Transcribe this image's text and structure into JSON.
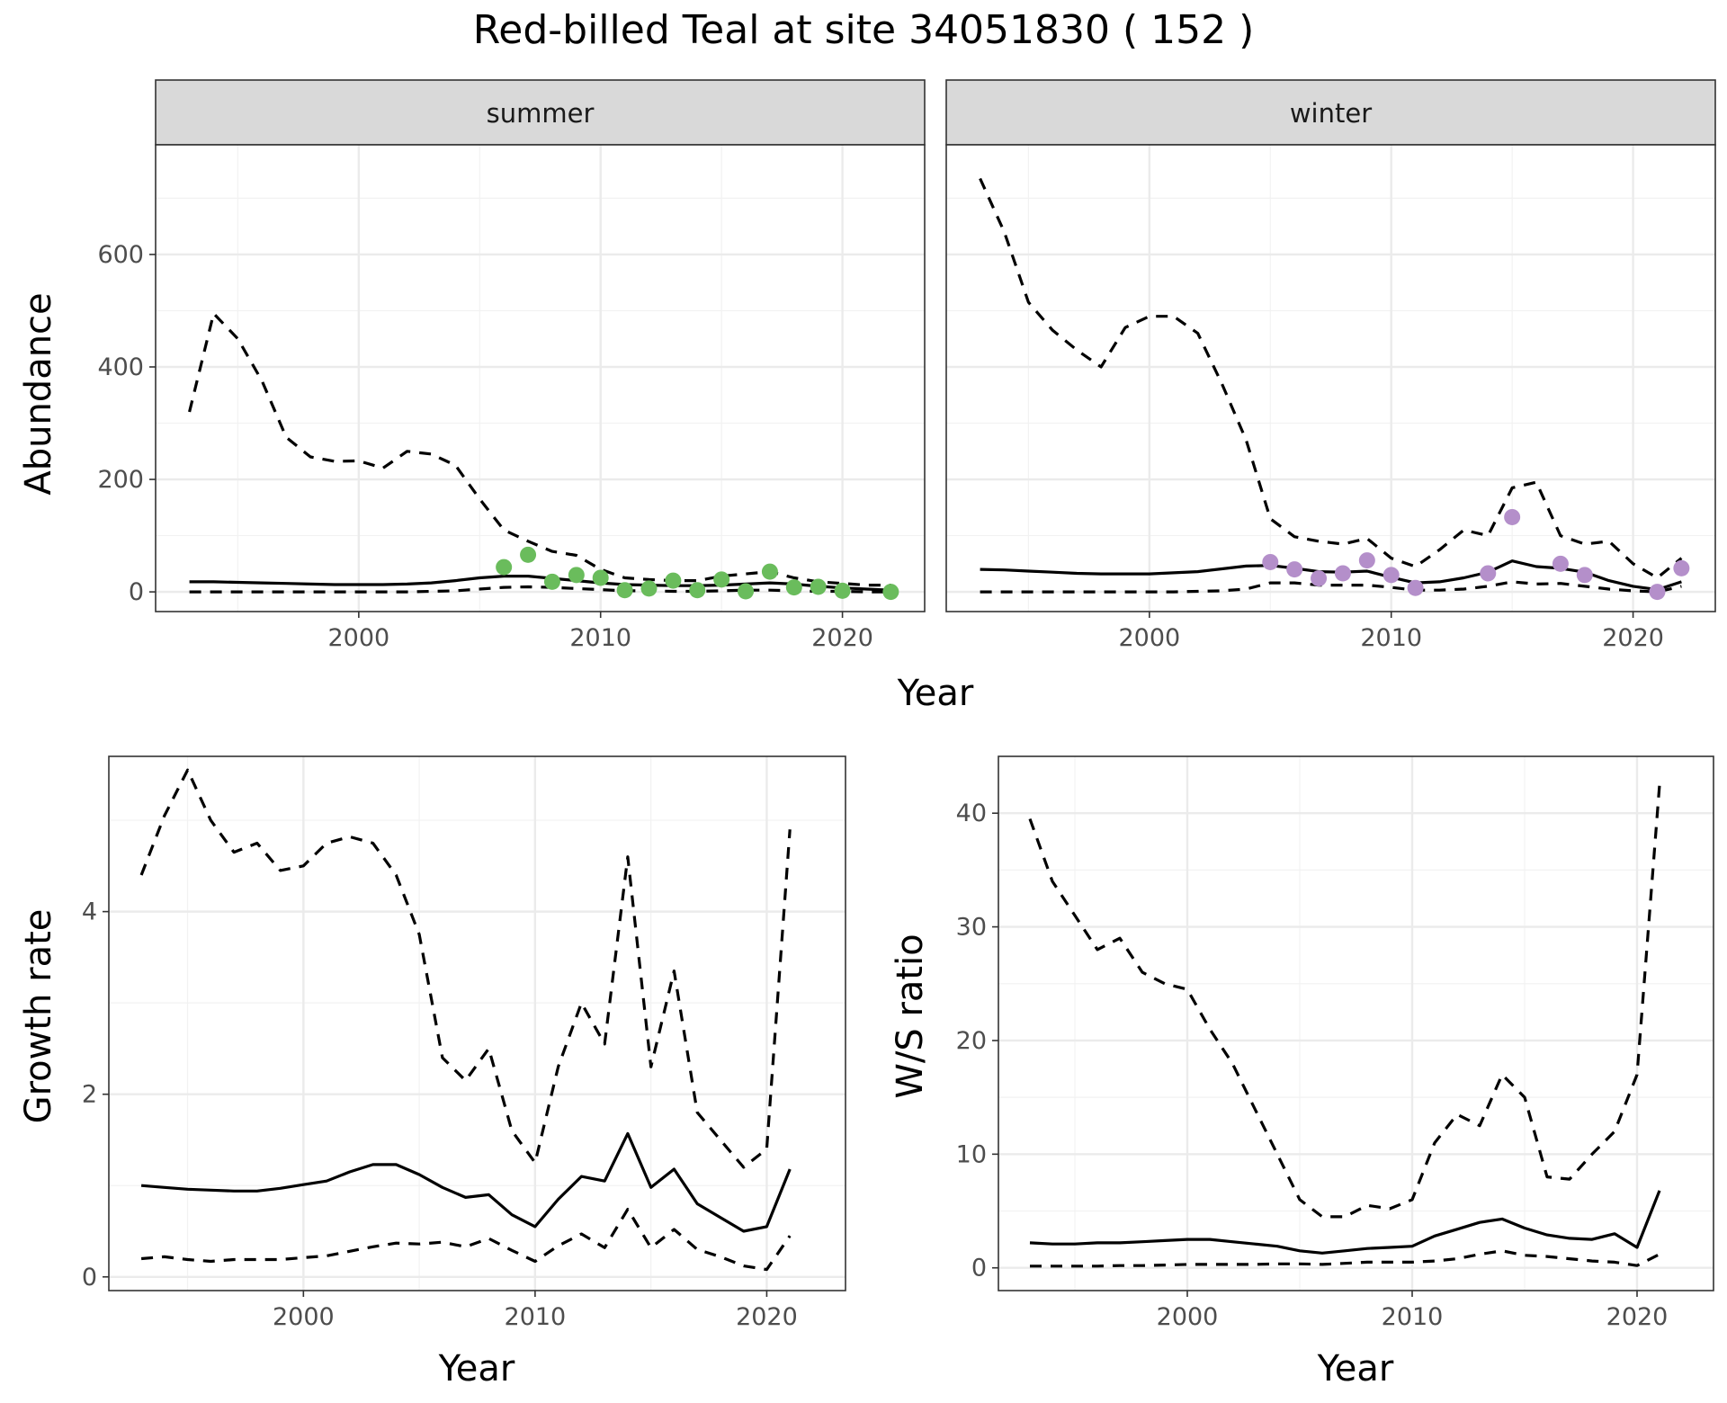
{
  "title": "Red-billed Teal at site 34051830 ( 152 )",
  "chart_data": [
    {
      "type": "line",
      "panel": "summer",
      "ylabel": "Abundance",
      "xlabel": "Year",
      "xlim": [
        1991.6,
        2023.4
      ],
      "ylim": [
        -35,
        795
      ],
      "xticks": [
        2000,
        2010,
        2020
      ],
      "yticks": [
        0,
        200,
        400,
        600
      ],
      "grid": true,
      "series": [
        {
          "x": [
            1993,
            1994,
            1995,
            1996,
            1997,
            1998,
            1999,
            2000,
            2001,
            2002,
            2003,
            2004,
            2005,
            2006,
            2007,
            2008,
            2009,
            2010,
            2011,
            2012,
            2013,
            2014,
            2015,
            2016,
            2017,
            2018,
            2019,
            2020,
            2021,
            2022
          ],
          "values": [
            18,
            18,
            17,
            16,
            15,
            14,
            13,
            13,
            13,
            14,
            16,
            20,
            25,
            28,
            28,
            24,
            20,
            16,
            13,
            12,
            11,
            11,
            12,
            14,
            16,
            14,
            10,
            7,
            5,
            3
          ]
        },
        {
          "x": [
            1993,
            1994,
            1995,
            1996,
            1997,
            1998,
            1999,
            2000,
            2001,
            2002,
            2003,
            2004,
            2005,
            2006,
            2007,
            2008,
            2009,
            2010,
            2011,
            2012,
            2013,
            2014,
            2015,
            2016,
            2017,
            2018,
            2019,
            2020,
            2021,
            2022
          ],
          "values": [
            320,
            495,
            450,
            375,
            275,
            240,
            232,
            233,
            220,
            250,
            245,
            225,
            165,
            110,
            90,
            72,
            65,
            40,
            25,
            22,
            20,
            20,
            28,
            32,
            36,
            25,
            18,
            15,
            12,
            12
          ]
        },
        {
          "x": [
            1993,
            1994,
            1995,
            1996,
            1997,
            1998,
            1999,
            2000,
            2001,
            2002,
            2003,
            2004,
            2005,
            2006,
            2007,
            2008,
            2009,
            2010,
            2011,
            2012,
            2013,
            2014,
            2015,
            2016,
            2017,
            2018,
            2019,
            2020,
            2021,
            2022
          ],
          "values": [
            0,
            0,
            0,
            0,
            0,
            0,
            0,
            0,
            0,
            0,
            1,
            2,
            5,
            8,
            9,
            8,
            6,
            4,
            2,
            2,
            1,
            1,
            2,
            3,
            3,
            2,
            1,
            1,
            0,
            0
          ]
        }
      ],
      "points": {
        "color": "#6abc5c",
        "x": [
          2006,
          2007,
          2008,
          2009,
          2010,
          2011,
          2012,
          2013,
          2014,
          2015,
          2016,
          2017,
          2018,
          2019,
          2020,
          2022
        ],
        "values": [
          44,
          66,
          18,
          30,
          25,
          3,
          6,
          20,
          3,
          22,
          1,
          36,
          8,
          9,
          2,
          0
        ]
      }
    },
    {
      "type": "line",
      "panel": "winter",
      "ylabel": "",
      "xlabel": "Year",
      "xlim": [
        1991.6,
        2023.4
      ],
      "ylim": [
        -35,
        795
      ],
      "xticks": [
        2000,
        2010,
        2020
      ],
      "yticks": [],
      "grid": true,
      "series": [
        {
          "x": [
            1993,
            1994,
            1995,
            1996,
            1997,
            1998,
            1999,
            2000,
            2001,
            2002,
            2003,
            2004,
            2005,
            2006,
            2007,
            2008,
            2009,
            2010,
            2011,
            2012,
            2013,
            2014,
            2015,
            2016,
            2017,
            2018,
            2019,
            2020,
            2021,
            2022
          ],
          "values": [
            40,
            39,
            37,
            35,
            33,
            32,
            32,
            32,
            34,
            36,
            41,
            46,
            47,
            42,
            36,
            35,
            37,
            26,
            16,
            18,
            25,
            35,
            55,
            45,
            42,
            35,
            20,
            10,
            4,
            18
          ]
        },
        {
          "x": [
            1993,
            1994,
            1995,
            1996,
            1997,
            1998,
            1999,
            2000,
            2001,
            2002,
            2003,
            2004,
            2005,
            2006,
            2007,
            2008,
            2009,
            2010,
            2011,
            2012,
            2013,
            2014,
            2015,
            2016,
            2017,
            2018,
            2019,
            2020,
            2021,
            2022
          ],
          "values": [
            735,
            640,
            515,
            465,
            430,
            400,
            470,
            490,
            490,
            460,
            370,
            270,
            130,
            98,
            90,
            85,
            95,
            60,
            45,
            75,
            110,
            100,
            185,
            195,
            100,
            85,
            90,
            50,
            25,
            60
          ]
        },
        {
          "x": [
            1993,
            1994,
            1995,
            1996,
            1997,
            1998,
            1999,
            2000,
            2001,
            2002,
            2003,
            2004,
            2005,
            2006,
            2007,
            2008,
            2009,
            2010,
            2011,
            2012,
            2013,
            2014,
            2015,
            2016,
            2017,
            2018,
            2019,
            2020,
            2021,
            2022
          ],
          "values": [
            0,
            0,
            0,
            0,
            0,
            0,
            0,
            0,
            0,
            1,
            2,
            5,
            16,
            16,
            12,
            12,
            12,
            8,
            3,
            3,
            5,
            10,
            18,
            14,
            15,
            10,
            5,
            2,
            0,
            10
          ]
        }
      ],
      "points": {
        "color": "#b48fca",
        "x": [
          2005,
          2006,
          2007,
          2008,
          2009,
          2010,
          2011,
          2014,
          2015,
          2017,
          2018,
          2021,
          2022
        ],
        "values": [
          53,
          40,
          24,
          33,
          56,
          30,
          7,
          33,
          133,
          50,
          30,
          0,
          42
        ]
      }
    },
    {
      "type": "line",
      "panel": "growth",
      "ylabel": "Growth rate",
      "xlabel": "Year",
      "xlim": [
        1991.6,
        2023.4
      ],
      "ylim": [
        -0.15,
        5.7
      ],
      "xticks": [
        2000,
        2010,
        2020
      ],
      "yticks": [
        0,
        2,
        4
      ],
      "grid": true,
      "series": [
        {
          "x": [
            1993,
            1994,
            1995,
            1996,
            1997,
            1998,
            1999,
            2000,
            2001,
            2002,
            2003,
            2004,
            2005,
            2006,
            2007,
            2008,
            2009,
            2010,
            2011,
            2012,
            2013,
            2014,
            2015,
            2016,
            2017,
            2018,
            2019,
            2020,
            2021
          ],
          "values": [
            1.0,
            0.98,
            0.96,
            0.95,
            0.94,
            0.94,
            0.97,
            1.01,
            1.05,
            1.15,
            1.23,
            1.23,
            1.12,
            0.98,
            0.87,
            0.9,
            0.68,
            0.55,
            0.85,
            1.1,
            1.05,
            1.57,
            0.98,
            1.18,
            0.8,
            0.65,
            0.5,
            0.55,
            1.18
          ]
        },
        {
          "x": [
            1993,
            1994,
            1995,
            1996,
            1997,
            1998,
            1999,
            2000,
            2001,
            2002,
            2003,
            2004,
            2005,
            2006,
            2007,
            2008,
            2009,
            2010,
            2011,
            2012,
            2013,
            2014,
            2015,
            2016,
            2017,
            2018,
            2019,
            2020,
            2021
          ],
          "values": [
            4.4,
            5.05,
            5.55,
            5.0,
            4.65,
            4.75,
            4.45,
            4.5,
            4.75,
            4.82,
            4.75,
            4.4,
            3.75,
            2.4,
            2.15,
            2.5,
            1.6,
            1.25,
            2.3,
            3.0,
            2.55,
            4.6,
            2.3,
            3.35,
            1.8,
            1.5,
            1.2,
            1.4,
            4.9
          ]
        },
        {
          "x": [
            1993,
            1994,
            1995,
            1996,
            1997,
            1998,
            1999,
            2000,
            2001,
            2002,
            2003,
            2004,
            2005,
            2006,
            2007,
            2008,
            2009,
            2010,
            2011,
            2012,
            2013,
            2014,
            2015,
            2016,
            2017,
            2018,
            2019,
            2020,
            2021
          ],
          "values": [
            0.2,
            0.22,
            0.19,
            0.17,
            0.19,
            0.19,
            0.19,
            0.21,
            0.23,
            0.28,
            0.33,
            0.37,
            0.36,
            0.38,
            0.33,
            0.42,
            0.29,
            0.17,
            0.34,
            0.47,
            0.32,
            0.74,
            0.32,
            0.52,
            0.3,
            0.22,
            0.12,
            0.08,
            0.45
          ]
        }
      ]
    },
    {
      "type": "line",
      "panel": "ratio",
      "ylabel": "W/S ratio",
      "xlabel": "Year",
      "xlim": [
        1991.6,
        2023.4
      ],
      "ylim": [
        -2,
        45
      ],
      "xticks": [
        2000,
        2010,
        2020
      ],
      "yticks": [
        0,
        10,
        20,
        30,
        40
      ],
      "grid": true,
      "series": [
        {
          "x": [
            1993,
            1994,
            1995,
            1996,
            1997,
            1998,
            1999,
            2000,
            2001,
            2002,
            2003,
            2004,
            2005,
            2006,
            2007,
            2008,
            2009,
            2010,
            2011,
            2012,
            2013,
            2014,
            2015,
            2016,
            2017,
            2018,
            2019,
            2020,
            2021
          ],
          "values": [
            2.2,
            2.1,
            2.1,
            2.2,
            2.2,
            2.3,
            2.4,
            2.5,
            2.5,
            2.3,
            2.1,
            1.9,
            1.5,
            1.3,
            1.5,
            1.7,
            1.8,
            1.9,
            2.8,
            3.4,
            4.0,
            4.3,
            3.5,
            2.9,
            2.6,
            2.5,
            3.0,
            1.8,
            6.8
          ]
        },
        {
          "x": [
            1993,
            1994,
            1995,
            1996,
            1997,
            1998,
            1999,
            2000,
            2001,
            2002,
            2003,
            2004,
            2005,
            2006,
            2007,
            2008,
            2009,
            2010,
            2011,
            2012,
            2013,
            2014,
            2015,
            2016,
            2017,
            2018,
            2019,
            2020,
            2021
          ],
          "values": [
            39.5,
            34.0,
            31.0,
            28.0,
            29.0,
            26.0,
            25.0,
            24.5,
            21.0,
            18.0,
            14.0,
            10.0,
            6.0,
            4.5,
            4.5,
            5.5,
            5.2,
            6.0,
            11.0,
            13.5,
            12.5,
            17.0,
            15.0,
            8.0,
            7.8,
            10.0,
            12.0,
            17.0,
            42.5
          ]
        },
        {
          "x": [
            1993,
            1994,
            1995,
            1996,
            1997,
            1998,
            1999,
            2000,
            2001,
            2002,
            2003,
            2004,
            2005,
            2006,
            2007,
            2008,
            2009,
            2010,
            2011,
            2012,
            2013,
            2014,
            2015,
            2016,
            2017,
            2018,
            2019,
            2020,
            2021
          ],
          "values": [
            0.15,
            0.15,
            0.15,
            0.15,
            0.2,
            0.2,
            0.25,
            0.3,
            0.3,
            0.3,
            0.3,
            0.35,
            0.35,
            0.3,
            0.4,
            0.5,
            0.5,
            0.5,
            0.6,
            0.8,
            1.2,
            1.5,
            1.1,
            1.0,
            0.8,
            0.6,
            0.5,
            0.2,
            1.2
          ]
        }
      ]
    }
  ]
}
